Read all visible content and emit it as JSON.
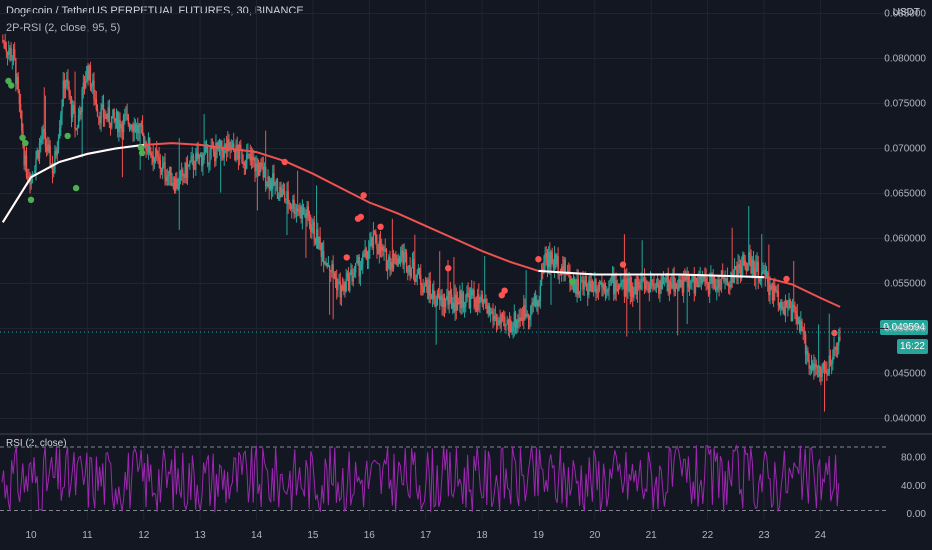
{
  "header": {
    "title": "Dogecoin / TetherUS PERPETUAL FUTURES, 30, BINANCE",
    "indicator": "2P-RSI (2, close, 95, 5)",
    "currency": "USDT"
  },
  "price_scale": {
    "labels": [
      "0.085000",
      "0.080000",
      "0.075000",
      "0.070000",
      "0.065000",
      "0.060000",
      "0.055000",
      "0.050000",
      "0.045000",
      "0.040000"
    ],
    "last_price": "0.049594",
    "countdown": "16:22"
  },
  "rsi_pane": {
    "label": "RSI (2, close)",
    "labels": [
      "80.00",
      "40.00",
      "0.00"
    ]
  },
  "time_axis": {
    "labels": [
      "10",
      "11",
      "12",
      "13",
      "14",
      "15",
      "16",
      "17",
      "18",
      "19",
      "20",
      "21",
      "22",
      "23",
      "24"
    ]
  },
  "colors": {
    "background": "#131722",
    "up": "#26a69a",
    "down": "#ef5350",
    "ma_bear": "#ef5350",
    "ma_bull": "#ffffff",
    "buy_dot": "#4caf50",
    "sell_dot": "#ff5252",
    "rsi_line": "#9c27b0"
  },
  "chart_data": {
    "type": "candlestick",
    "x_range": [
      "10",
      "24"
    ],
    "y_range": [
      0.0385,
      0.0865
    ],
    "price_path": [
      [
        9.5,
        0.082
      ],
      [
        9.7,
        0.08
      ],
      [
        9.9,
        0.068
      ],
      [
        10.0,
        0.067
      ],
      [
        10.2,
        0.0715
      ],
      [
        10.4,
        0.0675
      ],
      [
        10.6,
        0.078
      ],
      [
        10.8,
        0.072
      ],
      [
        11.0,
        0.079
      ],
      [
        11.2,
        0.074
      ],
      [
        11.5,
        0.073
      ],
      [
        11.8,
        0.073
      ],
      [
        12.0,
        0.071
      ],
      [
        12.3,
        0.068
      ],
      [
        12.6,
        0.066
      ],
      [
        12.8,
        0.068
      ],
      [
        13.0,
        0.069
      ],
      [
        13.2,
        0.0695
      ],
      [
        13.5,
        0.07
      ],
      [
        13.8,
        0.069
      ],
      [
        14.0,
        0.068
      ],
      [
        14.3,
        0.066
      ],
      [
        14.6,
        0.064
      ],
      [
        14.9,
        0.0625
      ],
      [
        15.1,
        0.0595
      ],
      [
        15.3,
        0.057
      ],
      [
        15.5,
        0.054
      ],
      [
        15.7,
        0.056
      ],
      [
        15.9,
        0.0575
      ],
      [
        16.1,
        0.06
      ],
      [
        16.3,
        0.0575
      ],
      [
        16.6,
        0.058
      ],
      [
        16.9,
        0.0555
      ],
      [
        17.2,
        0.053
      ],
      [
        17.5,
        0.053
      ],
      [
        17.8,
        0.0535
      ],
      [
        18.1,
        0.052
      ],
      [
        18.4,
        0.05
      ],
      [
        18.7,
        0.0515
      ],
      [
        19.0,
        0.053
      ],
      [
        19.1,
        0.058
      ],
      [
        19.4,
        0.057
      ],
      [
        19.7,
        0.0545
      ],
      [
        20.0,
        0.055
      ],
      [
        20.3,
        0.055
      ],
      [
        20.6,
        0.0545
      ],
      [
        20.9,
        0.055
      ],
      [
        21.2,
        0.055
      ],
      [
        21.5,
        0.055
      ],
      [
        21.8,
        0.055
      ],
      [
        22.1,
        0.055
      ],
      [
        22.4,
        0.0555
      ],
      [
        22.7,
        0.0575
      ],
      [
        23.0,
        0.0555
      ],
      [
        23.3,
        0.053
      ],
      [
        23.6,
        0.051
      ],
      [
        23.8,
        0.0465
      ],
      [
        24.0,
        0.045
      ],
      [
        24.2,
        0.046
      ],
      [
        24.35,
        0.0496
      ]
    ],
    "moving_average": [
      [
        9.5,
        0.0618
      ],
      [
        10.0,
        0.0668
      ],
      [
        10.5,
        0.0685
      ],
      [
        11.0,
        0.0694
      ],
      [
        11.5,
        0.07
      ],
      [
        12.0,
        0.0704
      ],
      [
        12.5,
        0.0706
      ],
      [
        13.0,
        0.0704
      ],
      [
        13.5,
        0.07
      ],
      [
        14.0,
        0.0696
      ],
      [
        14.5,
        0.0686
      ],
      [
        15.0,
        0.0672
      ],
      [
        15.5,
        0.0656
      ],
      [
        16.0,
        0.064
      ],
      [
        16.5,
        0.0628
      ],
      [
        17.0,
        0.0614
      ],
      [
        17.5,
        0.06
      ],
      [
        18.0,
        0.0586
      ],
      [
        18.5,
        0.0574
      ],
      [
        19.0,
        0.0564
      ],
      [
        19.5,
        0.0562
      ],
      [
        20.0,
        0.056
      ],
      [
        20.5,
        0.056
      ],
      [
        21.0,
        0.056
      ],
      [
        21.5,
        0.056
      ],
      [
        22.0,
        0.0559
      ],
      [
        22.5,
        0.0558
      ],
      [
        23.0,
        0.0557
      ],
      [
        23.5,
        0.0549
      ],
      [
        24.0,
        0.0534
      ],
      [
        24.35,
        0.0524
      ]
    ],
    "buy_signals": [
      [
        9.6,
        0.0775
      ],
      [
        9.65,
        0.077
      ],
      [
        9.85,
        0.0712
      ],
      [
        9.9,
        0.0706
      ],
      [
        10.0,
        0.0643
      ],
      [
        10.65,
        0.0714
      ],
      [
        10.8,
        0.0656
      ],
      [
        11.95,
        0.0701
      ],
      [
        11.97,
        0.0695
      ],
      [
        19.6,
        0.0552
      ]
    ],
    "sell_signals": [
      [
        14.5,
        0.0685
      ],
      [
        15.6,
        0.0579
      ],
      [
        15.8,
        0.0622
      ],
      [
        15.85,
        0.0624
      ],
      [
        15.9,
        0.0648
      ],
      [
        16.2,
        0.0613
      ],
      [
        17.4,
        0.0567
      ],
      [
        18.35,
        0.0537
      ],
      [
        18.4,
        0.0542
      ],
      [
        19.0,
        0.0577
      ],
      [
        20.5,
        0.0571
      ],
      [
        23.4,
        0.0555
      ],
      [
        24.25,
        0.0495
      ]
    ],
    "rsi": {
      "label": "RSI (2, close)",
      "y_range": [
        0,
        100
      ],
      "levels": [
        95,
        5
      ]
    }
  }
}
